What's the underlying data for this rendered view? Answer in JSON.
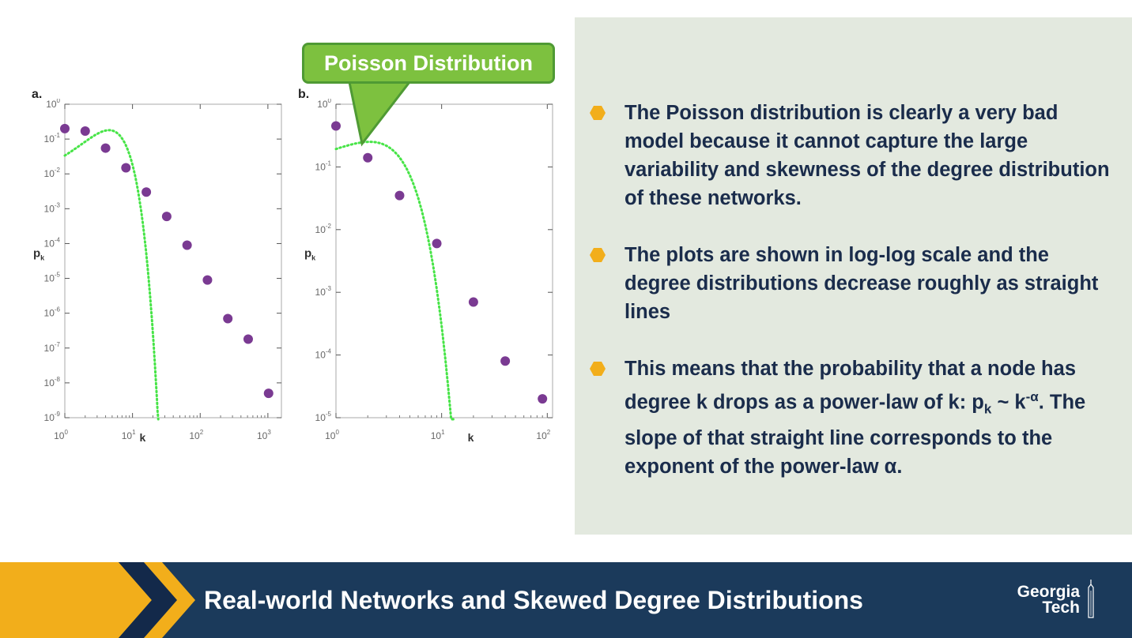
{
  "colors": {
    "accent_green": "#7dc13f",
    "callout_border": "#4f9a34",
    "dot_purple": "#7a3a92",
    "fit_green": "#47e447",
    "bullet_yellow": "#f2ae1b",
    "panel_bg": "#e3e9df",
    "text_navy": "#1a2c4b",
    "footer_navy": "#1b3a5b"
  },
  "callout": {
    "label": "Poisson Distribution"
  },
  "chart_data": [
    {
      "type": "scatter",
      "panel_label": "a.",
      "xlabel": "k",
      "ylabel": "p",
      "ylabel_sub": "k",
      "xscale": "log",
      "yscale": "log",
      "xlim_exp": [
        0,
        3.2
      ],
      "ylim_exp": [
        -9,
        0
      ],
      "xtick_exps": [
        0,
        1,
        2,
        3
      ],
      "ytick_exps": [
        0,
        -1,
        -2,
        -3,
        -4,
        -5,
        -6,
        -7,
        -8,
        -9
      ],
      "points": [
        {
          "k": 1,
          "p": 0.2
        },
        {
          "k": 2,
          "p": 0.17
        },
        {
          "k": 4,
          "p": 0.055
        },
        {
          "k": 8,
          "p": 0.015
        },
        {
          "k": 16,
          "p": 0.003
        },
        {
          "k": 32,
          "p": 0.0006
        },
        {
          "k": 64,
          "p": 9e-05
        },
        {
          "k": 128,
          "p": 9e-06
        },
        {
          "k": 256,
          "p": 7e-07
        },
        {
          "k": 512,
          "p": 1.8e-07
        },
        {
          "k": 1024,
          "p": 5e-09
        }
      ],
      "fit": {
        "name": "Poisson Distribution",
        "mean": 5,
        "style": "dotted"
      }
    },
    {
      "type": "scatter",
      "panel_label": "b.",
      "xlabel": "k",
      "ylabel": "p",
      "ylabel_sub": "k",
      "xscale": "log",
      "yscale": "log",
      "xlim_exp": [
        0,
        2.05
      ],
      "ylim_exp": [
        -5,
        0
      ],
      "xtick_exps": [
        0,
        1,
        2
      ],
      "ytick_exps": [
        0,
        -1,
        -2,
        -3,
        -4,
        -5
      ],
      "points": [
        {
          "k": 1,
          "p": 0.45
        },
        {
          "k": 2,
          "p": 0.14
        },
        {
          "k": 4,
          "p": 0.035
        },
        {
          "k": 9,
          "p": 0.006
        },
        {
          "k": 20,
          "p": 0.0007
        },
        {
          "k": 40,
          "p": 8e-05
        },
        {
          "k": 90,
          "p": 2e-05
        }
      ],
      "fit": {
        "name": "Poisson Distribution",
        "mean": 2.6,
        "style": "dotted"
      }
    }
  ],
  "bullets": [
    {
      "text": "The Poisson distribution is clearly a very bad model because it cannot capture the large variability and skewness of the degree distribution of these networks."
    },
    {
      "text": "The plots are shown in log-log scale and the degree distributions decrease roughly as straight lines"
    },
    {
      "line1": "This means that the probability that a node has degree k drops as a power-law of",
      "k_prefix": "k: p",
      "k_sub": "k",
      "tilde": " ~ k",
      "exp": "-α",
      "rest": ". The slope of that straight line corresponds to the exponent of the power-law α."
    }
  ],
  "footer": {
    "title": "Real-world Networks and Skewed Degree Distributions",
    "logo_line1": "Georgia",
    "logo_line2": "Tech"
  }
}
